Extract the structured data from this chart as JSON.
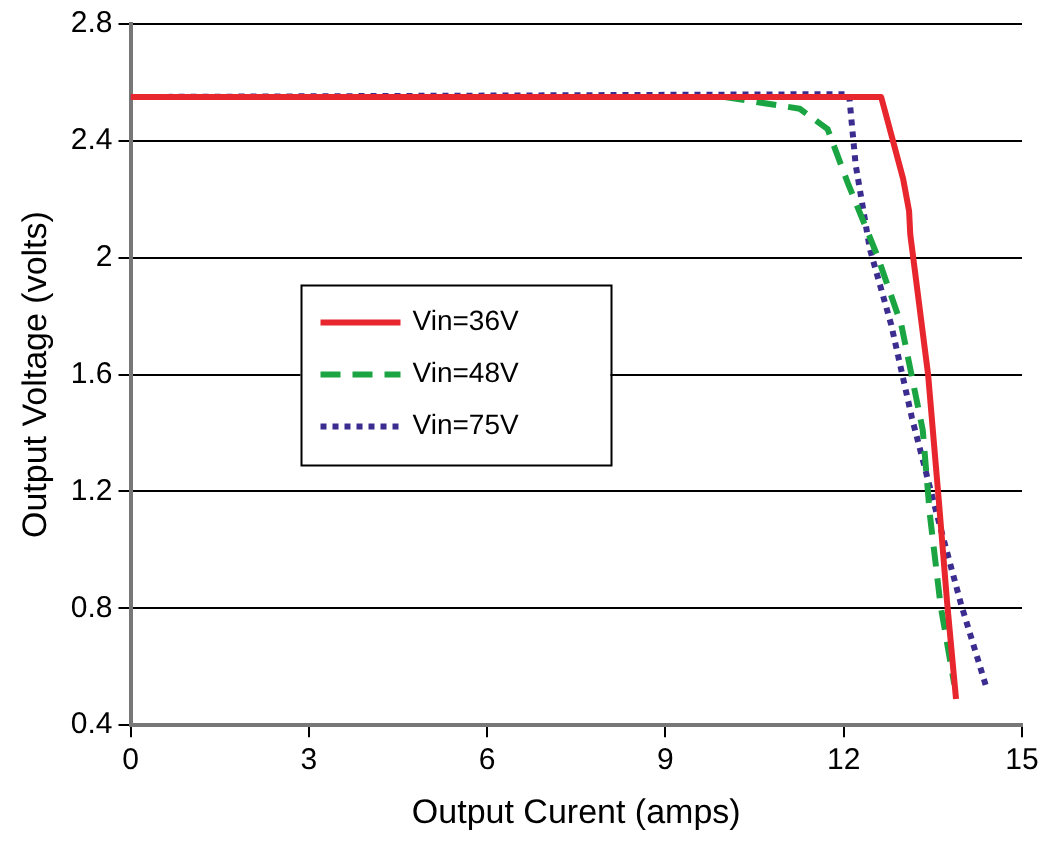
{
  "chart_data": {
    "type": "line",
    "xlabel": "Output Curent (amps)",
    "ylabel": "Output Voltage (volts)",
    "xlim": [
      0,
      15
    ],
    "xticks": [
      0,
      3,
      6,
      9,
      12,
      15
    ],
    "ylim": [
      0.4,
      2.8
    ],
    "yticks": [
      0.4,
      0.8,
      1.2,
      1.6,
      2,
      2.4,
      2.8
    ],
    "grid": "y",
    "legend": "left",
    "marker": "none",
    "series": [
      {
        "name": "Vin=36V",
        "color": "#e8262d",
        "line_style": "solid",
        "x": [
          0,
          12.63,
          12.71,
          13.0,
          13.1,
          13.12,
          13.42,
          13.6,
          13.74,
          13.89
        ],
        "values": [
          2.55,
          2.55,
          2.49,
          2.27,
          2.16,
          2.08,
          1.6,
          1.17,
          0.82,
          0.49
        ]
      },
      {
        "name": "Vin=48V",
        "color": "#1aa542",
        "line_style": "dashed",
        "x": [
          10.0,
          11.26,
          11.73,
          12.08,
          12.56,
          12.97,
          13.33,
          13.45,
          13.63,
          13.86
        ],
        "values": [
          2.55,
          2.51,
          2.44,
          2.25,
          2.01,
          1.77,
          1.41,
          1.12,
          0.81,
          0.54
        ]
      },
      {
        "name": "Vin=75V",
        "color": "#3b2d8f",
        "line_style": "dotted",
        "x": [
          0,
          12.09,
          12.2,
          12.44,
          12.8,
          13.15,
          13.57,
          13.98,
          14.4
        ],
        "values": [
          2.55,
          2.56,
          2.32,
          2.03,
          1.77,
          1.45,
          1.12,
          0.81,
          0.53
        ]
      }
    ]
  }
}
